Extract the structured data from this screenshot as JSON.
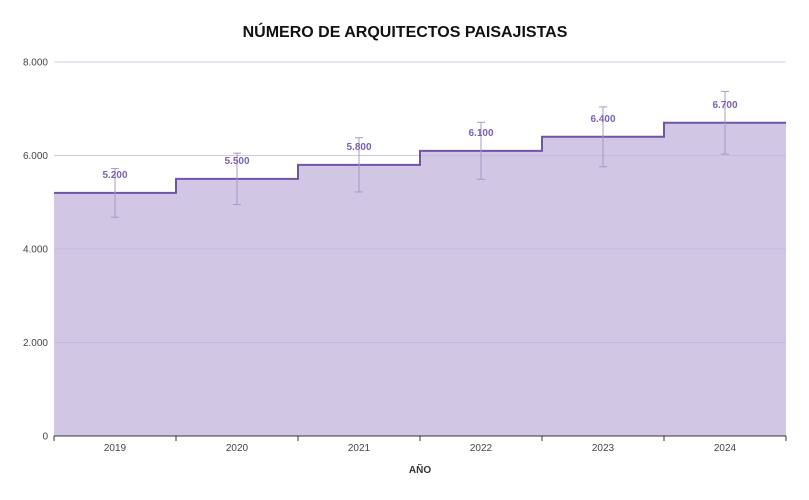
{
  "chart_data": {
    "type": "area",
    "title": "NÚMERO DE ARQUITECTOS PAISAJISTAS",
    "xlabel": "AÑO",
    "ylabel": "",
    "categories": [
      "2019",
      "2020",
      "2021",
      "2022",
      "2023",
      "2024"
    ],
    "series": [
      {
        "values": [
          5200,
          5500,
          5800,
          6100,
          6400,
          6700
        ],
        "labels": [
          "5.200",
          "5.500",
          "5.800",
          "6.100",
          "6.400",
          "6.700"
        ],
        "error_low": [
          4680,
          4950,
          5220,
          5490,
          5760,
          6030
        ],
        "error_high": [
          5720,
          6050,
          6380,
          6710,
          7040,
          7370
        ]
      }
    ],
    "ylim": [
      0,
      8000
    ],
    "yticks": [
      0,
      2000,
      4000,
      6000,
      8000
    ],
    "ytick_labels": [
      "0",
      "2.000",
      "4.000",
      "6.000",
      "8.000"
    ],
    "step": "center",
    "grid": true,
    "legend": "none",
    "colors": {
      "fill": "#d1c6e4",
      "line": "#6f54a8",
      "label": "#7a61b5",
      "error_bar": "#a898c8",
      "grid": "#e4e0ea",
      "axis": "#333333"
    }
  }
}
